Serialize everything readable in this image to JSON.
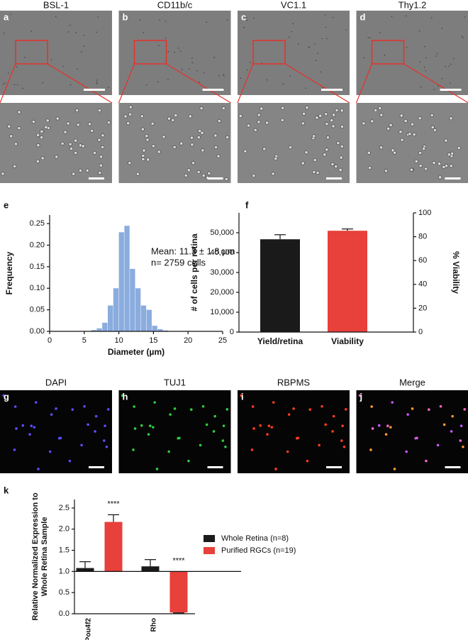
{
  "image_panels": {
    "brightfield": [
      {
        "letter": "a",
        "title": "BSL-1"
      },
      {
        "letter": "b",
        "title": "CD11b/c"
      },
      {
        "letter": "c",
        "title": "VC1.1"
      },
      {
        "letter": "d",
        "title": "Thy1.2"
      }
    ],
    "fluorescence": [
      {
        "letter": "g",
        "title": "DAPI"
      },
      {
        "letter": "h",
        "title": "TUJ1"
      },
      {
        "letter": "i",
        "title": "RBPMS"
      },
      {
        "letter": "j",
        "title": "Merge"
      }
    ]
  },
  "chart_data": [
    {
      "type": "histogram",
      "panel_label": "e",
      "x_label": "Diameter (µm)",
      "y_label": "Frequency",
      "annotations": [
        "Mean: 11.3 ± 1.8 µm",
        "n= 2759 cells"
      ],
      "color": "#8aacde",
      "bins": [
        6.0,
        6.8,
        7.6,
        8.4,
        9.2,
        10.0,
        10.8,
        11.6,
        12.4,
        13.2,
        14.0,
        14.8,
        15.6,
        16.4,
        17.2
      ],
      "values": [
        0.003,
        0.007,
        0.02,
        0.06,
        0.1,
        0.23,
        0.245,
        0.145,
        0.1,
        0.06,
        0.05,
        0.013,
        0.005,
        0.002
      ],
      "xlim": [
        0,
        25
      ],
      "xticks": [
        0,
        5,
        10,
        15,
        20,
        25
      ],
      "ylim": [
        0,
        0.27
      ],
      "yticks": [
        {
          "value": 0,
          "label": "0.00"
        },
        0.05,
        {
          "value": 0.1,
          "label": "0.10"
        },
        0.15,
        {
          "value": 0.2,
          "label": "0.20"
        },
        0.25
      ]
    },
    {
      "type": "dual_bar",
      "panel_label": "f",
      "y_label": "# of cells per retina",
      "y2_label": "% Viability",
      "categories": [
        "Yield/retina",
        "Viability"
      ],
      "series": [
        {
          "color": "#1a1a1a",
          "values": [
            46700,
            null
          ],
          "errors": [
            2300,
            null
          ]
        },
        {
          "color": "#e8403a",
          "values": [
            null,
            85
          ],
          "errors": [
            null,
            1.5
          ],
          "axis": "y2"
        }
      ],
      "ylim": [
        0,
        60000
      ],
      "yticks": [
        0,
        {
          "value": 10000,
          "label": "10,000"
        },
        {
          "value": 20000,
          "label": "20,000"
        },
        {
          "value": 30000,
          "label": "30,000"
        },
        {
          "value": 40000,
          "label": "40,000"
        },
        {
          "value": 50000,
          "label": "50,000"
        }
      ],
      "y2lim": [
        0,
        100
      ],
      "y2ticks": [
        0,
        20,
        40,
        60,
        80,
        100
      ]
    },
    {
      "type": "grouped_bar",
      "panel_label": "k",
      "y_label": "Relative Normalized Expression to Whole Retina Sample",
      "categories": [
        "Pou4f2",
        "Rho"
      ],
      "baseline": 1,
      "legend": "right",
      "series": [
        {
          "name": "Whole Retina (n=8)",
          "color": "#1a1a1a",
          "values": [
            1.08,
            1.12
          ],
          "errors": [
            0.15,
            0.16
          ]
        },
        {
          "name": "Purified RGCs (n=19)",
          "color": "#e8403a",
          "values": [
            2.17,
            0.03
          ],
          "errors": [
            0.17,
            0.01
          ],
          "significance": [
            "****",
            "****"
          ]
        }
      ],
      "ylim": [
        0,
        2.7
      ],
      "yticks": [
        {
          "value": 0,
          "label": "0.0"
        },
        0.5,
        {
          "value": 1,
          "label": "1.0"
        },
        1.5,
        {
          "value": 2,
          "label": "2.0"
        },
        2.5
      ]
    }
  ]
}
